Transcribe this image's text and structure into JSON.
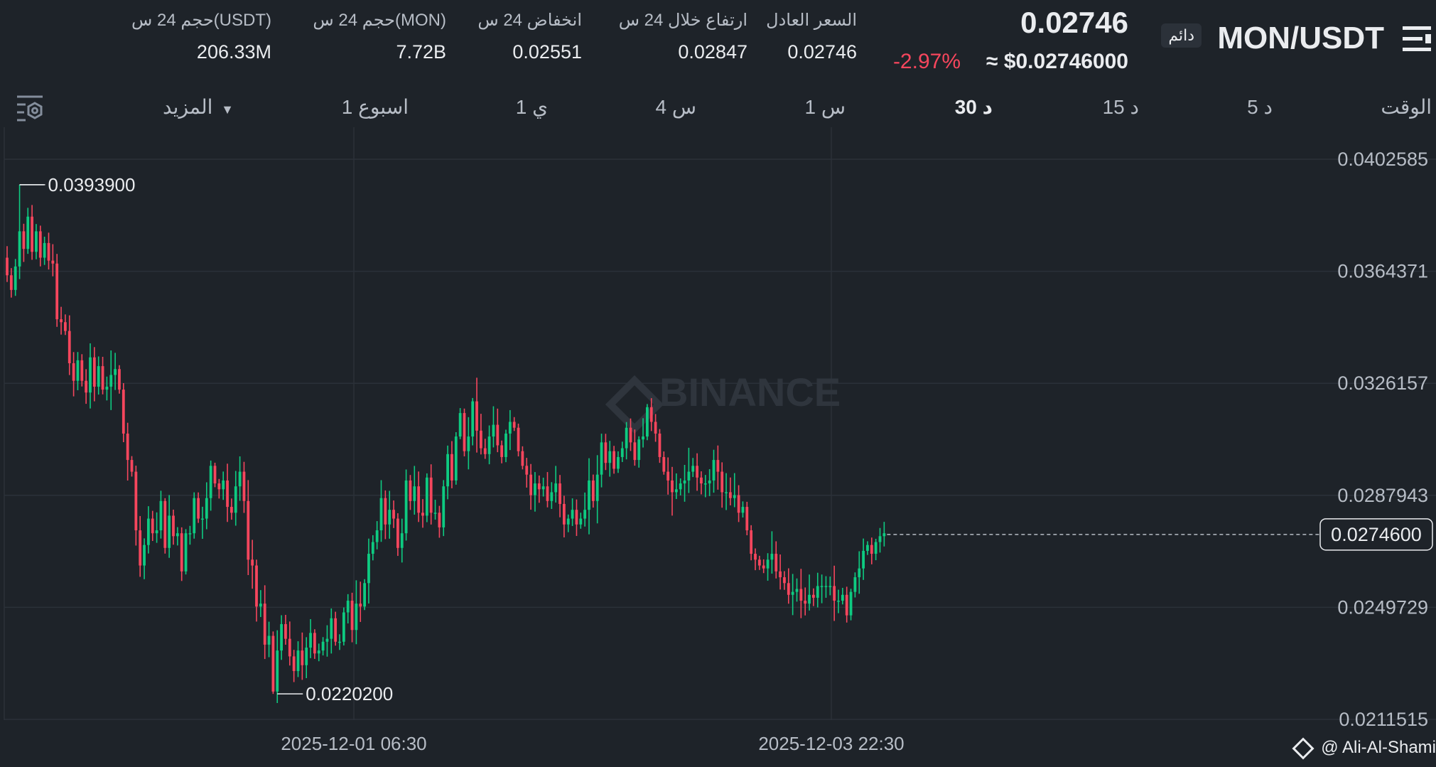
{
  "header": {
    "pair": "MON/USDT",
    "badge": "دائم",
    "last_price": "0.02746",
    "usd_price": "≈ $0.02746000",
    "change_pct": "-2.97%",
    "stats": [
      {
        "label": "السعر العادل",
        "value": "0.02746"
      },
      {
        "label": "ارتفاع خلال 24 س",
        "value": "0.02847"
      },
      {
        "label": "انخفاض 24 س",
        "value": "0.02551"
      },
      {
        "label": "حجم 24 س(MON)",
        "value": "7.72B"
      },
      {
        "label": "حجم 24 س(USDT)",
        "value": "206.33M"
      }
    ]
  },
  "toolbar": {
    "time_label": "الوقت",
    "intervals": [
      "5 د",
      "15 د",
      "30 د",
      "1 س",
      "4 س",
      "1 ي",
      "1 اسبوع"
    ],
    "active_interval": "30 د",
    "more_label": "المزيد"
  },
  "watermark": "BINANCE",
  "credit": "@ Ali-Al-Shami",
  "colors": {
    "up": "#0ecb81",
    "down": "#f6465d",
    "background": "#1e2329"
  },
  "icons": {
    "menu": "menu-icon",
    "settings": "chart-settings-icon",
    "logo": "binance-logo-icon"
  },
  "chart_data": {
    "type": "candlestick",
    "ylim": [
      0.0211515,
      0.0402585
    ],
    "y_ticks": [
      "0.0402585",
      "0.0364371",
      "0.0326157",
      "0.0287943",
      "0.0249729",
      "0.0211515"
    ],
    "x_ticks": [
      "2025-12-01 06:30",
      "2025-12-03 22:30"
    ],
    "high_marker": "0.0393900",
    "low_marker": "0.0220200",
    "current_price": "0.0274600",
    "closes": [
      0.0363,
      0.0358,
      0.0366,
      0.0378,
      0.0372,
      0.0383,
      0.0371,
      0.0378,
      0.0369,
      0.0374,
      0.0368,
      0.0367,
      0.0348,
      0.0347,
      0.0344,
      0.0333,
      0.0327,
      0.0334,
      0.0327,
      0.0323,
      0.0335,
      0.0325,
      0.0332,
      0.0324,
      0.0325,
      0.0329,
      0.0331,
      0.0324,
      0.0309,
      0.03,
      0.0296,
      0.0276,
      0.0264,
      0.0271,
      0.028,
      0.0275,
      0.0276,
      0.0286,
      0.027,
      0.0281,
      0.0274,
      0.0275,
      0.0262,
      0.0275,
      0.0275,
      0.0287,
      0.028,
      0.028,
      0.0287,
      0.0298,
      0.0292,
      0.029,
      0.0293,
      0.0284,
      0.0282,
      0.0291,
      0.0296,
      0.0286,
      0.0266,
      0.0264,
      0.025,
      0.0251,
      0.0237,
      0.024,
      0.0221,
      0.0235,
      0.0244,
      0.0239,
      0.0233,
      0.0228,
      0.0235,
      0.023,
      0.0236,
      0.0241,
      0.0234,
      0.0235,
      0.0238,
      0.0239,
      0.0246,
      0.0238,
      0.0238,
      0.0248,
      0.0252,
      0.0242,
      0.0251,
      0.025,
      0.0258,
      0.0268,
      0.0272,
      0.0276,
      0.0287,
      0.0278,
      0.0283,
      0.028,
      0.027,
      0.0275,
      0.0293,
      0.0286,
      0.0291,
      0.0282,
      0.0281,
      0.0294,
      0.0282,
      0.0282,
      0.0277,
      0.0291,
      0.0302,
      0.0293,
      0.0308,
      0.0316,
      0.0303,
      0.0308,
      0.032,
      0.031,
      0.0304,
      0.0302,
      0.0308,
      0.0312,
      0.0305,
      0.0301,
      0.0309,
      0.0313,
      0.0311,
      0.0303,
      0.0298,
      0.0295,
      0.0288,
      0.0292,
      0.029,
      0.0291,
      0.0286,
      0.0289,
      0.0292,
      0.0285,
      0.0278,
      0.028,
      0.0283,
      0.0278,
      0.028,
      0.0283,
      0.0293,
      0.0286,
      0.0295,
      0.0306,
      0.0299,
      0.0303,
      0.0297,
      0.0301,
      0.0304,
      0.0311,
      0.0306,
      0.03,
      0.0307,
      0.0308,
      0.0318,
      0.0313,
      0.0309,
      0.0301,
      0.0296,
      0.0293,
      0.0289,
      0.029,
      0.0292,
      0.0293,
      0.0296,
      0.0298,
      0.0294,
      0.0292,
      0.0292,
      0.0293,
      0.03,
      0.0296,
      0.0289,
      0.0289,
      0.0287,
      0.0288,
      0.0282,
      0.0284,
      0.0276,
      0.0268,
      0.0266,
      0.0264,
      0.0263,
      0.0266,
      0.0268,
      0.0262,
      0.026,
      0.0258,
      0.0254,
      0.0255,
      0.0256,
      0.0252,
      0.0251,
      0.0254,
      0.0253,
      0.0257,
      0.0257,
      0.0257,
      0.0257,
      0.0252,
      0.0252,
      0.0254,
      0.0247,
      0.0255,
      0.026,
      0.0263,
      0.0269,
      0.0271,
      0.0268,
      0.0272,
      0.0274,
      0.0275
    ]
  }
}
